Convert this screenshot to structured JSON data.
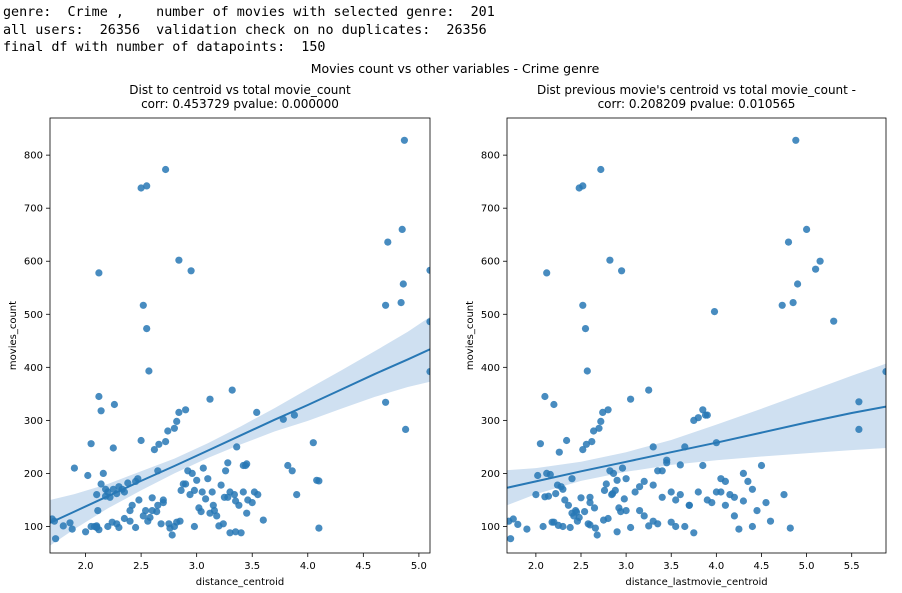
{
  "console": {
    "lines": [
      "genre:  Crime ,    number of movies with selected genre:  201",
      "all users:  26356  validation check on no duplicates:  26356",
      "final df with number of datapoints:  150"
    ]
  },
  "figure": {
    "suptitle": "Movies count vs other variables - Crime genre"
  },
  "chart_data": [
    {
      "type": "scatter",
      "title": "Dist to centroid vs total movie_count\ncorr: 0.453729  pvalue: 0.000000",
      "xlabel": "distance_centroid",
      "ylabel": "movies_count",
      "xlim": [
        1.68,
        5.1
      ],
      "ylim": [
        50,
        870
      ],
      "xticks": [
        2.0,
        2.5,
        3.0,
        3.5,
        4.0,
        4.5,
        5.0
      ],
      "xtick_labels": [
        "2.0",
        "2.5",
        "3.0",
        "3.5",
        "4.0",
        "4.5",
        "5.0"
      ],
      "yticks": [
        100,
        200,
        300,
        400,
        500,
        600,
        700,
        800
      ],
      "ytick_labels": [
        "100",
        "200",
        "300",
        "400",
        "500",
        "600",
        "700",
        "800"
      ],
      "point_color": "#2878b5",
      "regression": {
        "x": [
          1.68,
          1.9,
          2.2,
          2.5,
          2.8,
          3.1,
          3.4,
          3.7,
          4.0,
          4.3,
          4.6,
          4.9,
          5.1
        ],
        "y": [
          107,
          128,
          157,
          186,
          214,
          243,
          272,
          301,
          329,
          358,
          387,
          415,
          434
        ],
        "ci_upper": [
          150,
          161,
          180,
          204,
          228,
          257,
          289,
          323,
          359,
          394,
          430,
          467,
          495
        ],
        "ci_lower": [
          64,
          95,
          134,
          168,
          200,
          229,
          255,
          279,
          299,
          322,
          344,
          363,
          373
        ],
        "color": "#2878b5",
        "band_color": "#cfe0f1"
      },
      "x": [
        1.7,
        1.73,
        1.72,
        1.8,
        1.88,
        1.9,
        1.86,
        2.02,
        2.05,
        2.08,
        2.1,
        2.12,
        2.14,
        2.16,
        2.18,
        2.2,
        2.22,
        2.24,
        2.26,
        2.28,
        2.12,
        2.1,
        2.11,
        2.14,
        2.18,
        2.25,
        2.3,
        2.33,
        2.35,
        2.38,
        2.4,
        2.42,
        2.45,
        2.47,
        2.5,
        2.52,
        2.54,
        2.56,
        2.58,
        2.6,
        2.62,
        2.64,
        2.66,
        2.68,
        2.7,
        2.72,
        2.74,
        2.76,
        2.78,
        2.8,
        2.82,
        2.84,
        2.86,
        2.88,
        2.9,
        2.92,
        2.94,
        2.96,
        2.98,
        3.0,
        3.02,
        3.04,
        3.06,
        3.08,
        3.1,
        3.12,
        3.14,
        3.16,
        3.18,
        3.2,
        3.22,
        3.24,
        3.26,
        3.28,
        3.3,
        3.32,
        3.34,
        3.36,
        3.38,
        3.4,
        3.42,
        3.44,
        3.46,
        3.5,
        3.52,
        3.54,
        2.5,
        2.55,
        2.72,
        2.84,
        2.95,
        2.52,
        2.55,
        2.57,
        2.1,
        2.05,
        2.12,
        2.2,
        2.28,
        2.35,
        2.4,
        2.48,
        2.6,
        2.65,
        2.7,
        2.75,
        2.8,
        2.85,
        2.9,
        3.05,
        3.15,
        3.25,
        3.35,
        3.45,
        3.55,
        3.78,
        3.82,
        3.86,
        3.88,
        3.9,
        4.05,
        4.08,
        4.1,
        4.1,
        4.7,
        4.72,
        4.7,
        4.84,
        4.85,
        4.86,
        4.88,
        4.87,
        5.1,
        5.1,
        5.1,
        3.3,
        3.35,
        3.45,
        3.6,
        2.0,
        2.1,
        2.25,
        2.3,
        2.45,
        2.65,
        2.82,
        2.98,
        3.12,
        3.28,
        3.42
      ],
      "y": [
        114,
        77,
        110,
        101,
        95,
        210,
        107,
        196,
        256,
        100,
        99,
        345,
        318,
        200,
        157,
        165,
        155,
        108,
        330,
        162,
        578,
        101,
        130,
        180,
        170,
        248,
        175,
        170,
        165,
        182,
        110,
        140,
        98,
        190,
        262,
        120,
        130,
        110,
        117,
        154,
        245,
        128,
        255,
        105,
        145,
        260,
        280,
        97,
        84,
        285,
        298,
        315,
        168,
        180,
        320,
        205,
        160,
        200,
        168,
        187,
        135,
        128,
        210,
        152,
        190,
        340,
        165,
        130,
        120,
        101,
        178,
        105,
        205,
        220,
        165,
        357,
        160,
        250,
        140,
        88,
        165,
        215,
        150,
        145,
        165,
        315,
        738,
        742,
        773,
        602,
        582,
        517,
        473,
        393,
        98,
        100,
        94,
        100,
        105,
        115,
        130,
        150,
        130,
        140,
        150,
        105,
        100,
        110,
        180,
        165,
        140,
        155,
        148,
        218,
        160,
        302,
        215,
        205,
        310,
        160,
        258,
        187,
        186,
        97,
        517,
        636,
        334,
        522,
        660,
        557,
        283,
        828,
        583,
        486,
        392,
        88,
        90,
        125,
        112,
        90,
        160,
        170,
        98,
        185,
        205,
        108,
        100,
        125,
        155,
        215
      ],
      "plot_area_color": "#ffffff"
    },
    {
      "type": "scatter",
      "title": "Dist previous movie's centroid vs total movie_count -\ncorr: 0.208209  pvalue: 0.010565",
      "xlabel": "distance_lastmovie_centroid",
      "ylabel": "movies_count",
      "xlim": [
        1.68,
        5.88
      ],
      "ylim": [
        50,
        870
      ],
      "xticks": [
        2.0,
        2.5,
        3.0,
        3.5,
        4.0,
        4.5,
        5.0,
        5.5
      ],
      "xtick_labels": [
        "2.0",
        "2.5",
        "3.0",
        "3.5",
        "4.0",
        "4.5",
        "5.0",
        "5.5"
      ],
      "yticks": [
        100,
        200,
        300,
        400,
        500,
        600,
        700,
        800
      ],
      "ytick_labels": [
        "100",
        "200",
        "300",
        "400",
        "500",
        "600",
        "700",
        "800"
      ],
      "point_color": "#2878b5",
      "regression": {
        "x": [
          1.68,
          2.0,
          2.5,
          3.0,
          3.5,
          4.0,
          4.5,
          5.0,
          5.5,
          5.88
        ],
        "y": [
          173,
          185,
          204,
          222,
          240,
          258,
          277,
          296,
          314,
          326
        ],
        "ci_upper": [
          206,
          210,
          222,
          240,
          263,
          292,
          322,
          353,
          384,
          407
        ],
        "ci_lower": [
          140,
          161,
          186,
          203,
          216,
          225,
          232,
          238,
          244,
          248
        ],
        "color": "#2878b5",
        "band_color": "#cfe0f1"
      },
      "x": [
        1.7,
        1.72,
        1.8,
        1.9,
        2.02,
        2.05,
        2.08,
        2.1,
        2.12,
        2.14,
        2.16,
        2.18,
        2.2,
        2.22,
        2.24,
        2.26,
        2.28,
        2.3,
        2.32,
        2.34,
        2.36,
        2.38,
        2.4,
        2.42,
        2.44,
        2.46,
        2.48,
        2.5,
        2.52,
        2.54,
        2.56,
        2.58,
        2.6,
        2.62,
        2.64,
        2.66,
        2.68,
        2.7,
        2.72,
        2.74,
        2.76,
        2.78,
        2.8,
        2.82,
        2.84,
        2.86,
        2.88,
        2.9,
        2.92,
        2.94,
        2.96,
        2.98,
        3.0,
        3.05,
        3.1,
        3.15,
        3.2,
        3.25,
        3.3,
        3.35,
        3.4,
        3.45,
        3.5,
        3.55,
        3.6,
        3.65,
        3.7,
        3.75,
        3.8,
        3.85,
        3.9,
        3.95,
        4.0,
        4.05,
        4.1,
        4.15,
        4.2,
        4.25,
        4.3,
        4.35,
        4.4,
        4.45,
        4.5,
        4.55,
        2.48,
        2.52,
        2.72,
        2.82,
        2.95,
        2.52,
        2.55,
        2.57,
        2.12,
        3.98,
        4.8,
        4.85,
        4.9,
        5.0,
        5.1,
        5.15,
        5.3,
        4.73,
        4.88,
        5.58,
        5.58,
        5.88,
        3.8,
        3.85,
        3.9,
        4.0,
        4.05,
        4.1,
        4.2,
        4.3,
        4.4,
        4.6,
        4.75,
        4.82,
        2.1,
        2.2,
        2.3,
        2.4,
        2.6,
        2.75,
        2.9,
        3.05,
        3.2,
        3.35,
        3.5,
        3.65,
        3.25,
        3.3,
        3.45,
        3.6,
        3.75,
        3.88,
        2.6,
        2.8,
        3.0,
        3.3,
        3.55,
        1.75,
        2.0,
        2.25,
        2.45,
        2.65,
        2.85,
        3.15,
        3.4,
        3.7
      ],
      "y": [
        110,
        77,
        104,
        95,
        196,
        256,
        100,
        345,
        200,
        157,
        198,
        108,
        330,
        162,
        178,
        240,
        175,
        170,
        150,
        262,
        140,
        98,
        190,
        120,
        130,
        110,
        117,
        154,
        245,
        128,
        255,
        105,
        145,
        260,
        280,
        97,
        84,
        285,
        298,
        315,
        168,
        180,
        320,
        205,
        160,
        200,
        168,
        187,
        135,
        128,
        210,
        152,
        190,
        340,
        165,
        130,
        120,
        101,
        178,
        105,
        205,
        220,
        165,
        150,
        160,
        250,
        140,
        88,
        165,
        215,
        150,
        145,
        165,
        190,
        185,
        160,
        120,
        95,
        200,
        185,
        170,
        130,
        215,
        145,
        738,
        742,
        773,
        602,
        582,
        517,
        473,
        393,
        578,
        505,
        636,
        522,
        557,
        660,
        585,
        600,
        487,
        517,
        828,
        283,
        335,
        392,
        305,
        320,
        310,
        258,
        165,
        140,
        155,
        148,
        100,
        110,
        160,
        97,
        156,
        108,
        100,
        125,
        155,
        112,
        90,
        98,
        185,
        205,
        108,
        100,
        357,
        250,
        225,
        216,
        300,
        310,
        103,
        115,
        130,
        110,
        100,
        114,
        160,
        102,
        127,
        135,
        162,
        175,
        155,
        140
      ]
    }
  ]
}
